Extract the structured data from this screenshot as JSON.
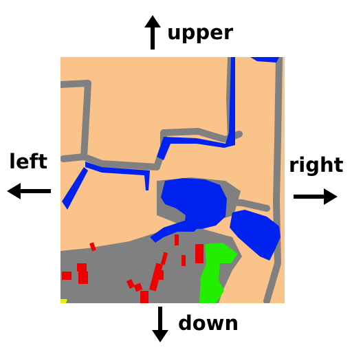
{
  "navigation": {
    "upper_label": "upper",
    "down_label": "down",
    "left_label": "left",
    "right_label": "right"
  },
  "map": {
    "legend_colors": {
      "land": "#FAC38A",
      "road": "#808080",
      "water": "#0022EE",
      "building": "#EE0000",
      "vegetation": "#22EE00",
      "edge": "#EEEE00"
    },
    "arrow_icons": [
      "arrow-up-icon",
      "arrow-down-icon",
      "arrow-left-icon",
      "arrow-right-icon"
    ]
  }
}
